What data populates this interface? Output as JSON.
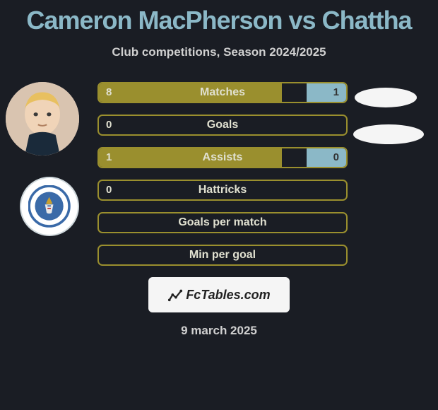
{
  "title": "Cameron MacPherson vs Chattha",
  "subtitle": "Club competitions, Season 2024/2025",
  "date": "9 march 2025",
  "fctables_label": "FcTables.com",
  "colors": {
    "background": "#1a1d24",
    "title": "#8bb8c7",
    "text": "#d0d0d0",
    "bar_left": "#9a8f2e",
    "bar_right": "#8bb8c7",
    "bar_border": "#9a8f2e",
    "bar_text": "#e0e0d0"
  },
  "stats": [
    {
      "label": "Matches",
      "left_val": "8",
      "right_val": "1",
      "left_pct": 74,
      "right_pct": 16
    },
    {
      "label": "Goals",
      "left_val": "0",
      "right_val": "",
      "left_pct": 0,
      "right_pct": 0
    },
    {
      "label": "Assists",
      "left_val": "1",
      "right_val": "0",
      "left_pct": 74,
      "right_pct": 16
    },
    {
      "label": "Hattricks",
      "left_val": "0",
      "right_val": "",
      "left_pct": 0,
      "right_pct": 0
    },
    {
      "label": "Goals per match",
      "left_val": "",
      "right_val": "",
      "left_pct": 0,
      "right_pct": 0
    },
    {
      "label": "Min per goal",
      "left_val": "",
      "right_val": "",
      "left_pct": 0,
      "right_pct": 0
    }
  ]
}
